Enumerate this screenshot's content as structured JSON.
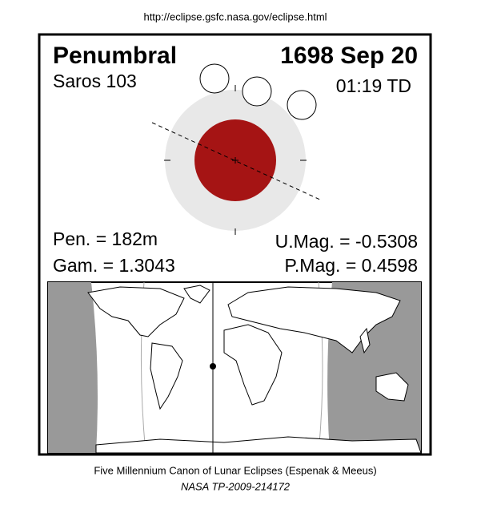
{
  "header": {
    "url": "http://eclipse.gsfc.nasa.gov/eclipse.html"
  },
  "panel": {
    "eclipse_type": "Penumbral",
    "date": "1698 Sep 20",
    "saros": "Saros 103",
    "time": "01:19 TD",
    "pen_duration": "Pen. = 182m",
    "gamma": "Gam. = 1.3043",
    "umag": "U.Mag. = -0.5308",
    "pmag": "P.Mag. = 0.4598"
  },
  "footer": {
    "canon": "Five Millennium Canon of Lunar Eclipses (Espenak & Meeus)",
    "reference": "NASA TP-2009-214172"
  }
}
